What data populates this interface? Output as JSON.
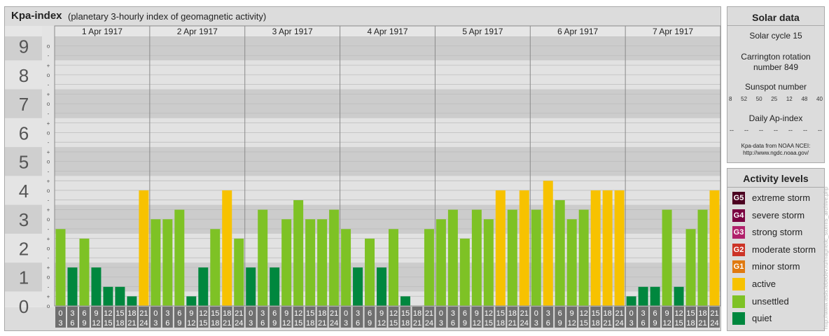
{
  "header": {
    "title": "Kpa-index",
    "subtitle": "(planetary 3-hourly index of geomagnetic activity)"
  },
  "solar": {
    "title": "Solar data",
    "cycle": "Solar cycle 15",
    "carrington_line1": "Carrington rotation",
    "carrington_line2": "number 849",
    "sunspot_title": "Sunspot number",
    "sunspots": [
      "8",
      "52",
      "50",
      "25",
      "12",
      "48",
      "40"
    ],
    "ap_title": "Daily Ap-index",
    "ap_values": [
      "--",
      "--",
      "--",
      "--",
      "--",
      "--",
      "--"
    ],
    "source_line1": "Kpa-data from NOAA NCEI:",
    "source_line2": "http://www.ngdc.noaa.gov/"
  },
  "activity": {
    "title": "Activity levels",
    "items": [
      {
        "badge": "G5",
        "label": "extreme storm",
        "color": "#4b0020"
      },
      {
        "badge": "G4",
        "label": "severe storm",
        "color": "#7a0040"
      },
      {
        "badge": "G3",
        "label": "strong storm",
        "color": "#b0206a"
      },
      {
        "badge": "G2",
        "label": "moderate storm",
        "color": "#cc3326"
      },
      {
        "badge": "G1",
        "label": "minor storm",
        "color": "#e07a10"
      },
      {
        "badge": "",
        "label": "active",
        "color": "#f7c200"
      },
      {
        "badge": "",
        "label": "unsettled",
        "color": "#7ec225"
      },
      {
        "badge": "",
        "label": "quiet",
        "color": "#00873e"
      }
    ]
  },
  "watermark": "http://www.tesis.lebedev.ru/magnetic_storms_archive.php",
  "chart_data": {
    "type": "bar",
    "y_tick_labels": [
      "0",
      "1",
      "2",
      "3",
      "4",
      "5",
      "6",
      "7",
      "8",
      "9"
    ],
    "y_sub_labels": [
      "o",
      "+",
      "-"
    ],
    "ylim": [
      0,
      9.33
    ],
    "days": [
      "1 Apr 1917",
      "2 Apr 1917",
      "3 Apr 1917",
      "4 Apr 1917",
      "5 Apr 1917",
      "6 Apr 1917",
      "7 Apr 1917"
    ],
    "interval_labels": [
      [
        "0",
        "3"
      ],
      [
        "3",
        "6"
      ],
      [
        "6",
        "9"
      ],
      [
        "9",
        "12"
      ],
      [
        "12",
        "15"
      ],
      [
        "15",
        "18"
      ],
      [
        "18",
        "21"
      ],
      [
        "21",
        "24"
      ]
    ],
    "values": [
      2.33,
      1.0,
      2.0,
      1.0,
      0.33,
      0.33,
      0.0,
      3.67,
      2.67,
      2.67,
      3.0,
      0.0,
      1.0,
      2.33,
      3.67,
      2.0,
      1.0,
      3.0,
      1.0,
      2.67,
      3.33,
      2.67,
      2.67,
      3.0,
      2.33,
      1.0,
      2.0,
      1.0,
      2.33,
      0.0,
      -0.33,
      2.33,
      2.67,
      3.0,
      2.0,
      3.0,
      2.67,
      3.67,
      3.0,
      3.67,
      3.0,
      4.0,
      3.33,
      2.67,
      3.0,
      3.67,
      3.67,
      3.67,
      0.0,
      0.33,
      0.33,
      3.0,
      0.33,
      2.33,
      3.0,
      3.67
    ],
    "color_thresholds": {
      "quiet_below": 2.0,
      "active_from": 3.67,
      "g1_from": 5.0
    },
    "colors": {
      "quiet": "#00873e",
      "unsettled": "#7ec225",
      "active": "#f7c200",
      "g1": "#e07a10"
    }
  }
}
